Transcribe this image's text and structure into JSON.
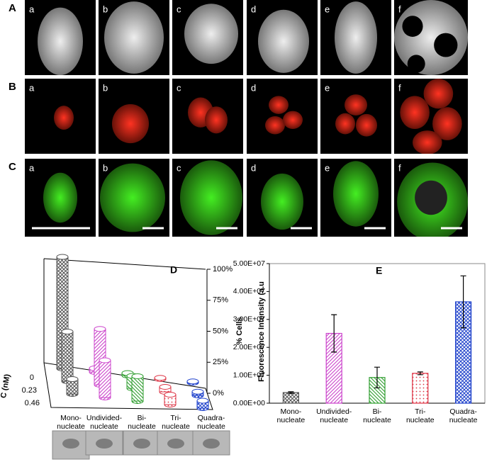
{
  "panels": [
    {
      "label": "A",
      "subpanels": [
        "a",
        "b",
        "c",
        "d",
        "e",
        "f"
      ]
    },
    {
      "label": "B",
      "subpanels": [
        "a",
        "b",
        "c",
        "d",
        "e",
        "f"
      ]
    },
    {
      "label": "C",
      "subpanels": [
        "a",
        "b",
        "c",
        "d",
        "e",
        "f"
      ]
    }
  ],
  "chart_data": [
    {
      "type": "bar3d",
      "title": "D",
      "categories": [
        "Mono-nucleate",
        "Undivided-nucleate",
        "Bi-nucleate",
        "Tri-nucleate",
        "Quadra-nucleate"
      ],
      "colors": [
        "#555555",
        "#cc44cc",
        "#2f9e2f",
        "#dd3344",
        "#2244cc"
      ],
      "series": [
        {
          "name": "0",
          "values": [
            90,
            3,
            2,
            1,
            1
          ]
        },
        {
          "name": "0.23",
          "values": [
            40,
            45,
            10,
            4,
            3
          ]
        },
        {
          "name": "0.46",
          "values": [
            12,
            30,
            20,
            8,
            6
          ]
        }
      ],
      "zlabel": "% Cells",
      "depth_label": "C (nM)",
      "zlim": [
        0,
        100
      ],
      "zticks": [
        {
          "value": 0,
          "label": "0%"
        },
        {
          "value": 25,
          "label": "25%"
        },
        {
          "value": 50,
          "label": "50%"
        },
        {
          "value": 75,
          "label": "75%"
        },
        {
          "value": 100,
          "label": "100%"
        }
      ]
    },
    {
      "type": "bar",
      "title": "E",
      "categories": [
        "Mono-nucleate",
        "Undivided-nucleate",
        "Bi-nucleate",
        "Tri-nucleate",
        "Quadra-nucleate"
      ],
      "colors": [
        "#555555",
        "#cc44cc",
        "#2f9e2f",
        "#dd3344",
        "#2244cc"
      ],
      "values": [
        3800000,
        25000000,
        9200000,
        10700000,
        36300000
      ],
      "errors": [
        300000,
        6700000,
        3700000,
        500000,
        9300000
      ],
      "ylabel": "Fluorescence Intensity (a.u",
      "ylim": [
        0,
        50000000
      ],
      "yticks": [
        {
          "value": 0,
          "label": "0.00E+00"
        },
        {
          "value": 10000000,
          "label": "1.00E+07"
        },
        {
          "value": 20000000,
          "label": "2.00E+07"
        },
        {
          "value": 30000000,
          "label": "3.00E+07"
        },
        {
          "value": 40000000,
          "label": "4.00E+07"
        },
        {
          "value": 50000000,
          "label": "5.00E+07"
        }
      ]
    }
  ]
}
